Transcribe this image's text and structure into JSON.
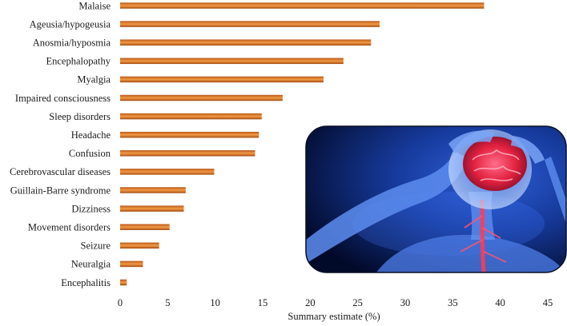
{
  "chart_data": {
    "type": "bar",
    "orientation": "horizontal",
    "categories": [
      "Malaise",
      "Ageusia/hypogeusia",
      "Anosmia/hyposmia",
      "Encephalopathy",
      "Myalgia",
      "Impaired consciousness",
      "Sleep disorders",
      "Headache",
      "Confusion",
      "Cerebrovascular diseases",
      "Guillain-Barre syndrome",
      "Dizziness",
      "Movement disorders",
      "Seizure",
      "Neuralgia",
      "Encephalitis"
    ],
    "values": [
      38.3,
      27.3,
      26.4,
      23.5,
      21.4,
      17.1,
      14.9,
      14.6,
      14.2,
      9.9,
      6.9,
      6.7,
      5.2,
      4.1,
      2.4,
      0.7
    ],
    "xlabel": "Summary estimate (%)",
    "ylabel": "",
    "xlim": [
      0,
      45
    ],
    "xticks": [
      "0",
      "5",
      "10",
      "15",
      "20",
      "25",
      "30",
      "35",
      "40",
      "45"
    ],
    "grid": false,
    "bar_color": "#d2691e",
    "bar_color_light": "#f4a04a",
    "bar_color_dark": "#9c4a12"
  },
  "inset_image": {
    "icon": "headache-human-brain-illustration"
  }
}
